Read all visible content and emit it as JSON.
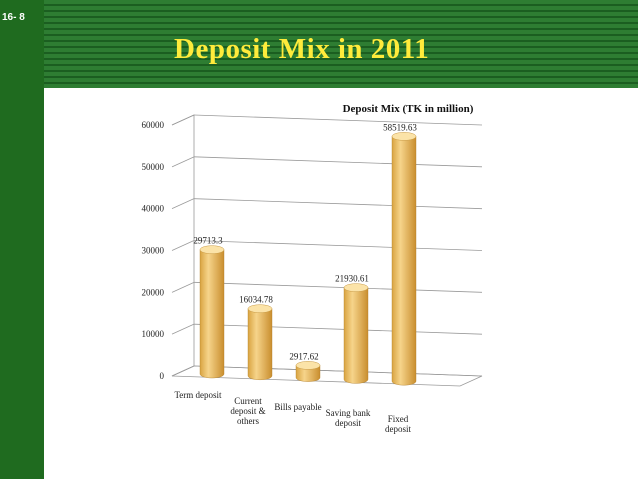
{
  "slide": {
    "number": "16- 8",
    "title": "Deposit Mix in 2011"
  },
  "colors": {
    "sidebar": "#1f6b1f",
    "header": "#2e7d32",
    "title": "#ffeb3b",
    "bar": "#f3c266"
  },
  "chart_data": {
    "type": "bar",
    "title": "Deposit Mix (TK in million)",
    "categories": [
      [
        "Term deposit"
      ],
      [
        "Current",
        "deposit &",
        "others"
      ],
      [
        "Bills payable"
      ],
      [
        "Saving bank",
        "deposit"
      ],
      [
        "Fixed",
        "deposit"
      ]
    ],
    "values": [
      29713.3,
      16034.78,
      2917.62,
      21930.61,
      58519.63
    ],
    "value_labels": [
      "29713.3",
      "16034.78",
      "2917.62",
      "21930.61",
      "58519.63"
    ],
    "y_ticks": [
      0,
      10000,
      20000,
      30000,
      40000,
      50000,
      60000
    ],
    "ylim": [
      0,
      60000
    ],
    "grid": true,
    "xlabel": "",
    "ylabel": ""
  }
}
